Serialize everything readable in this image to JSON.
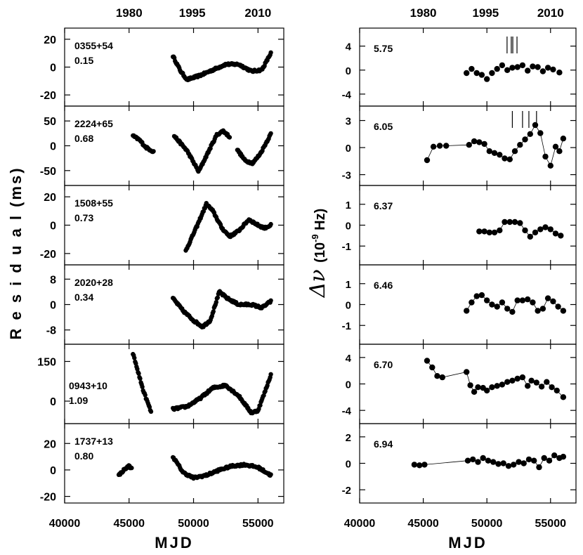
{
  "chart_data": {
    "type": "scatter",
    "x_label": "MJD",
    "x_ticks": [
      "40000",
      "45000",
      "50000",
      "55000"
    ],
    "year_ticks": [
      "1980",
      "1995",
      "2010"
    ],
    "left_ylabel": "R e s i d u a l   (ms)",
    "right_ylabel_main": "Δν",
    "right_ylabel_units": "(10",
    "right_ylabel_exp": "-9",
    "right_ylabel_hz": "Hz)",
    "left_panels": [
      {
        "name": "0355+54",
        "value": "0.15",
        "ylim": [
          -28,
          28
        ],
        "yticks": [
          20,
          0,
          -20
        ],
        "ytick_labels": [
          "20",
          "0",
          "-20"
        ],
        "segments": [
          {
            "x0": 48400,
            "x1": 56000,
            "pts": [
              [
                48400,
                8
              ],
              [
                49000,
                -3
              ],
              [
                49500,
                -9
              ],
              [
                50500,
                -6
              ],
              [
                51500,
                -2
              ],
              [
                52500,
                2
              ],
              [
                53500,
                2
              ],
              [
                54500,
                -3
              ],
              [
                55300,
                -2
              ],
              [
                56000,
                10
              ]
            ]
          }
        ]
      },
      {
        "name": "2224+65",
        "value": "0.68",
        "ylim": [
          -80,
          80
        ],
        "yticks": [
          50,
          0,
          -50
        ],
        "ytick_labels": [
          "50",
          "0",
          "-50"
        ],
        "segments": [
          {
            "x0": 45300,
            "x1": 46900,
            "pts": [
              [
                45300,
                20
              ],
              [
                45800,
                12
              ],
              [
                46300,
                -3
              ],
              [
                46900,
                -12
              ]
            ]
          },
          {
            "x0": 48500,
            "x1": 52800,
            "pts": [
              [
                48500,
                20
              ],
              [
                49500,
                -10
              ],
              [
                50400,
                -52
              ],
              [
                51000,
                -20
              ],
              [
                51800,
                22
              ],
              [
                52300,
                30
              ],
              [
                52800,
                18
              ]
            ]
          },
          {
            "x0": 53400,
            "x1": 56000,
            "pts": [
              [
                53400,
                -8
              ],
              [
                54000,
                -30
              ],
              [
                54600,
                -35
              ],
              [
                55200,
                -15
              ],
              [
                56000,
                24
              ]
            ]
          }
        ]
      },
      {
        "name": "1508+55",
        "value": "0.73",
        "ylim": [
          -28,
          28
        ],
        "yticks": [
          20,
          0,
          -20
        ],
        "ytick_labels": [
          "20",
          "0",
          "-20"
        ],
        "segments": [
          {
            "x0": 49400,
            "x1": 56000,
            "pts": [
              [
                49400,
                -18
              ],
              [
                50300,
                0
              ],
              [
                51000,
                15
              ],
              [
                51500,
                10
              ],
              [
                52200,
                -2
              ],
              [
                52800,
                -8
              ],
              [
                53500,
                -4
              ],
              [
                54300,
                4
              ],
              [
                55000,
                0
              ],
              [
                55500,
                -2
              ],
              [
                56000,
                0
              ]
            ]
          }
        ]
      },
      {
        "name": "2020+28",
        "value": "0.34",
        "ylim": [
          -12.5,
          12.5
        ],
        "yticks": [
          8,
          0,
          -8
        ],
        "ytick_labels": [
          "8",
          "0",
          "-8"
        ],
        "segments": [
          {
            "x0": 48400,
            "x1": 56000,
            "pts": [
              [
                48400,
                2
              ],
              [
                49200,
                -2
              ],
              [
                50000,
                -5
              ],
              [
                50700,
                -7
              ],
              [
                51300,
                -5
              ],
              [
                52000,
                4
              ],
              [
                52600,
                2
              ],
              [
                53500,
                0
              ],
              [
                54500,
                0
              ],
              [
                55300,
                -1
              ],
              [
                56000,
                1
              ]
            ]
          }
        ]
      },
      {
        "name": "0943+10",
        "value": "1.09",
        "ylim": [
          -85,
          215
        ],
        "yticks": [
          150,
          0
        ],
        "ytick_labels": [
          "150",
          "0"
        ],
        "segments": [
          {
            "x0": 45300,
            "x1": 46700,
            "pts": [
              [
                45300,
                180
              ],
              [
                45700,
                110
              ],
              [
                46100,
                40
              ],
              [
                46700,
                -40
              ]
            ]
          },
          {
            "x0": 48400,
            "x1": 56000,
            "pts": [
              [
                48400,
                -30
              ],
              [
                49500,
                -20
              ],
              [
                50500,
                10
              ],
              [
                51500,
                50
              ],
              [
                52500,
                60
              ],
              [
                53500,
                20
              ],
              [
                54500,
                -45
              ],
              [
                55000,
                -35
              ],
              [
                55500,
                30
              ],
              [
                56000,
                100
              ]
            ]
          }
        ]
      },
      {
        "name": "1737+13",
        "value": "0.80",
        "ylim": [
          -25,
          35
        ],
        "yticks": [
          20,
          0,
          -20
        ],
        "ytick_labels": [
          "20",
          "0",
          "-20"
        ],
        "segments": [
          {
            "x0": 44200,
            "x1": 45200,
            "pts": [
              [
                44200,
                -4
              ],
              [
                44600,
                0
              ],
              [
                45000,
                3
              ],
              [
                45200,
                1
              ]
            ]
          },
          {
            "x0": 48400,
            "x1": 56000,
            "pts": [
              [
                48400,
                10
              ],
              [
                49200,
                -2
              ],
              [
                50000,
                -6
              ],
              [
                51000,
                -4
              ],
              [
                52000,
                0
              ],
              [
                53000,
                3
              ],
              [
                54000,
                4
              ],
              [
                55000,
                2
              ],
              [
                56000,
                -4
              ]
            ]
          }
        ]
      }
    ],
    "right_panels": [
      {
        "label": "5.75",
        "ylim": [
          -6,
          7
        ],
        "yticks": [
          4,
          0,
          -4
        ],
        "ytick_labels": [
          "4",
          "0",
          "-4"
        ],
        "connect": false,
        "markers": [
          51750,
          52200
        ],
        "points": [
          [
            48400,
            -0.5
          ],
          [
            48800,
            0.2
          ],
          [
            49200,
            -0.5
          ],
          [
            49600,
            -0.8
          ],
          [
            50000,
            -1.5
          ],
          [
            50400,
            -0.5
          ],
          [
            50800,
            0.2
          ],
          [
            51200,
            0.8
          ],
          [
            51600,
            0
          ],
          [
            52000,
            0.4
          ],
          [
            52400,
            0.5
          ],
          [
            52800,
            0.8
          ],
          [
            53200,
            -0.1
          ],
          [
            53600,
            0.6
          ],
          [
            54000,
            0.5
          ],
          [
            54400,
            -0.2
          ],
          [
            54800,
            0.4
          ],
          [
            55200,
            0.1
          ],
          [
            55700,
            -0.4
          ]
        ]
      },
      {
        "label": "6.05",
        "ylim": [
          -4.2,
          4.6
        ],
        "yticks": [
          3,
          0,
          -3
        ],
        "ytick_labels": [
          "3",
          "0",
          "-3"
        ],
        "connect": true,
        "markers": [
          52000,
          52800,
          53300,
          53900
        ],
        "points": [
          [
            45300,
            -1.4
          ],
          [
            45800,
            0.1
          ],
          [
            46300,
            0.2
          ],
          [
            46800,
            0.2
          ],
          [
            48600,
            0.3
          ],
          [
            49000,
            0.7
          ],
          [
            49400,
            0.6
          ],
          [
            49800,
            0.4
          ],
          [
            50200,
            -0.4
          ],
          [
            50600,
            -0.6
          ],
          [
            51000,
            -0.8
          ],
          [
            51400,
            -1.2
          ],
          [
            51800,
            -1.3
          ],
          [
            52200,
            -0.4
          ],
          [
            52600,
            0.3
          ],
          [
            53000,
            0.9
          ],
          [
            53400,
            1.5
          ],
          [
            53800,
            2.5
          ],
          [
            54200,
            1.6
          ],
          [
            54600,
            -1.0
          ],
          [
            55000,
            -2.0
          ],
          [
            55400,
            0.1
          ],
          [
            55700,
            -0.4
          ],
          [
            56000,
            1.0
          ]
        ]
      },
      {
        "label": "6.37",
        "ylim": [
          -1.9,
          1.9
        ],
        "yticks": [
          1,
          0,
          -1
        ],
        "ytick_labels": [
          "1",
          "0",
          "-1"
        ],
        "connect": true,
        "markers": [],
        "points": [
          [
            49400,
            -0.3
          ],
          [
            49800,
            -0.3
          ],
          [
            50200,
            -0.35
          ],
          [
            50600,
            -0.35
          ],
          [
            51000,
            -0.25
          ],
          [
            51400,
            0.15
          ],
          [
            51800,
            0.15
          ],
          [
            52200,
            0.15
          ],
          [
            52600,
            0.1
          ],
          [
            53000,
            -0.25
          ],
          [
            53400,
            -0.55
          ],
          [
            53800,
            -0.35
          ],
          [
            54200,
            -0.2
          ],
          [
            54600,
            -0.1
          ],
          [
            55000,
            -0.2
          ],
          [
            55400,
            -0.4
          ],
          [
            55800,
            -0.5
          ]
        ]
      },
      {
        "label": "6.46",
        "ylim": [
          -1.9,
          1.9
        ],
        "yticks": [
          1,
          0,
          -1
        ],
        "ytick_labels": [
          "1",
          "0",
          "-1"
        ],
        "connect": true,
        "markers": [],
        "points": [
          [
            48400,
            -0.3
          ],
          [
            48800,
            0.1
          ],
          [
            49200,
            0.4
          ],
          [
            49600,
            0.45
          ],
          [
            50000,
            0.2
          ],
          [
            50400,
            0
          ],
          [
            50800,
            -0.1
          ],
          [
            51200,
            0.1
          ],
          [
            51600,
            -0.2
          ],
          [
            52000,
            -0.35
          ],
          [
            52400,
            0.2
          ],
          [
            52800,
            0.2
          ],
          [
            53200,
            0.25
          ],
          [
            53600,
            0.1
          ],
          [
            54000,
            -0.3
          ],
          [
            54400,
            -0.2
          ],
          [
            54800,
            0.3
          ],
          [
            55200,
            0.15
          ],
          [
            55600,
            -0.1
          ],
          [
            56000,
            -0.3
          ]
        ]
      },
      {
        "label": "6.70",
        "ylim": [
          -6,
          6
        ],
        "yticks": [
          4,
          0,
          -4
        ],
        "ytick_labels": [
          "4",
          "0",
          "-4"
        ],
        "connect": true,
        "markers": [],
        "points": [
          [
            45300,
            3.5
          ],
          [
            45700,
            2.5
          ],
          [
            46100,
            1.2
          ],
          [
            46500,
            1.0
          ],
          [
            48400,
            1.8
          ],
          [
            48700,
            -0.2
          ],
          [
            49000,
            -1.2
          ],
          [
            49300,
            -0.5
          ],
          [
            49700,
            -0.6
          ],
          [
            50000,
            -1.0
          ],
          [
            50400,
            -0.5
          ],
          [
            50800,
            -0.3
          ],
          [
            51200,
            -0.1
          ],
          [
            51600,
            0.3
          ],
          [
            52000,
            0.5
          ],
          [
            52400,
            0.8
          ],
          [
            52800,
            1.0
          ],
          [
            53200,
            -0.3
          ],
          [
            53500,
            0.5
          ],
          [
            53900,
            0.2
          ],
          [
            54300,
            -0.4
          ],
          [
            54700,
            0.3
          ],
          [
            55100,
            -0.5
          ],
          [
            55500,
            -1.0
          ],
          [
            56000,
            -2.0
          ]
        ]
      },
      {
        "label": "6.94",
        "ylim": [
          -3,
          3
        ],
        "yticks": [
          2,
          0,
          -2
        ],
        "ytick_labels": [
          "2",
          "0",
          "-2"
        ],
        "connect": true,
        "markers": [],
        "points": [
          [
            44300,
            -0.1
          ],
          [
            44700,
            -0.15
          ],
          [
            45100,
            -0.1
          ],
          [
            48500,
            0.2
          ],
          [
            48900,
            0.3
          ],
          [
            49300,
            0.1
          ],
          [
            49700,
            0.4
          ],
          [
            50100,
            0.2
          ],
          [
            50500,
            0.1
          ],
          [
            50900,
            -0.05
          ],
          [
            51300,
            0.0
          ],
          [
            51700,
            -0.2
          ],
          [
            52100,
            -0.1
          ],
          [
            52500,
            0.1
          ],
          [
            52900,
            0.0
          ],
          [
            53300,
            0.3
          ],
          [
            53700,
            0.2
          ],
          [
            54100,
            -0.3
          ],
          [
            54500,
            0.4
          ],
          [
            54900,
            0.2
          ],
          [
            55300,
            0.6
          ],
          [
            55700,
            0.4
          ],
          [
            56000,
            0.5
          ]
        ]
      }
    ]
  }
}
